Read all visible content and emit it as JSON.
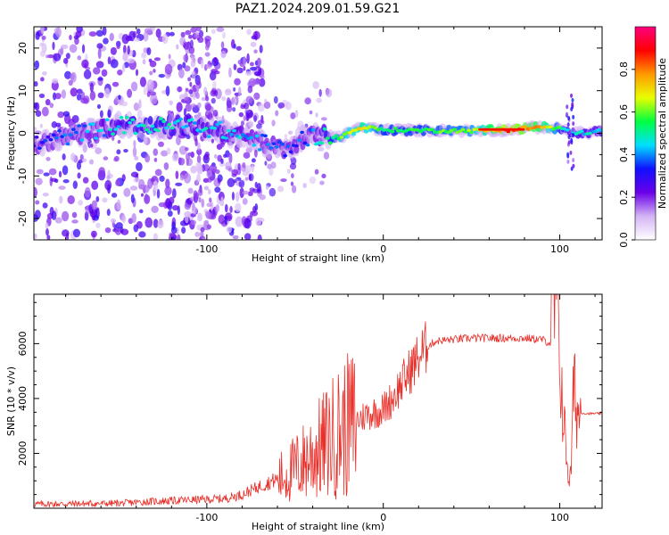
{
  "title": "PAZ1.2024.209.01.59.G21",
  "chart_data": [
    {
      "type": "heatmap",
      "xlabel": "Height of straight line (km)",
      "ylabel": "Frequency (Hz)",
      "xlim": [
        -198,
        124
      ],
      "ylim": [
        -25,
        25
      ],
      "xticks": [
        -100,
        0,
        100
      ],
      "yticks": [
        -20,
        -10,
        0,
        10,
        20
      ],
      "colorbar": {
        "label": "Normalized spectral amplitude",
        "range": [
          0,
          1
        ],
        "ticks": [
          0.0,
          0.2,
          0.4,
          0.6,
          0.8
        ],
        "colormap": [
          "#ffffff",
          "#d4b4f5",
          "#6a00e8",
          "#1010ff",
          "#00e0ff",
          "#00ff40",
          "#e8ff00",
          "#ff9900",
          "#ff0000",
          "#ff0080"
        ]
      },
      "ridge": [
        {
          "x": -198,
          "f": -2.5,
          "a": 0.3
        },
        {
          "x": -150,
          "f": 2.0,
          "a": 0.45
        },
        {
          "x": -130,
          "f": 1.5,
          "a": 0.5
        },
        {
          "x": -110,
          "f": 2.0,
          "a": 0.45
        },
        {
          "x": -90,
          "f": 0.5,
          "a": 0.45
        },
        {
          "x": -70,
          "f": -2.0,
          "a": 0.4
        },
        {
          "x": -55,
          "f": -4.0,
          "a": 0.35
        },
        {
          "x": -45,
          "f": -1.0,
          "a": 0.35
        },
        {
          "x": -35,
          "f": -0.5,
          "a": 0.45
        },
        {
          "x": -25,
          "f": -1.0,
          "a": 0.6
        },
        {
          "x": -12,
          "f": 1.5,
          "a": 0.7
        },
        {
          "x": 0,
          "f": 0.8,
          "a": 0.55
        },
        {
          "x": 20,
          "f": 0.7,
          "a": 0.55
        },
        {
          "x": 50,
          "f": 0.6,
          "a": 0.6
        },
        {
          "x": 70,
          "f": 0.8,
          "a": 0.85
        },
        {
          "x": 90,
          "f": 1.5,
          "a": 0.75
        },
        {
          "x": 102,
          "f": 1.0,
          "a": 0.5
        },
        {
          "x": 110,
          "f": 0.0,
          "a": 0.45
        },
        {
          "x": 124,
          "f": 0.5,
          "a": 0.45
        }
      ]
    },
    {
      "type": "line",
      "xlabel": "Height of straight line (km)",
      "ylabel": "SNR (10 * v/v)",
      "xlim": [
        -198,
        124
      ],
      "ylim": [
        0,
        7800
      ],
      "xticks": [
        -100,
        0,
        100
      ],
      "yticks": [
        2000,
        4000,
        6000
      ],
      "color": "#e8302a",
      "x": [
        -198,
        -150,
        -130,
        -110,
        -90,
        -80,
        -70,
        -55,
        -45,
        -40,
        -35,
        -30,
        -25,
        -20,
        -15,
        -10,
        -5,
        0,
        5,
        10,
        15,
        20,
        25,
        30,
        40,
        50,
        60,
        70,
        80,
        90,
        95,
        98,
        100,
        103,
        106,
        108,
        110,
        115,
        124
      ],
      "y": [
        150,
        180,
        250,
        300,
        350,
        500,
        800,
        1200,
        1700,
        2000,
        2200,
        2500,
        2800,
        3000,
        3200,
        3400,
        3500,
        3600,
        4000,
        4500,
        5000,
        5500,
        5900,
        6100,
        6150,
        6200,
        6200,
        6200,
        6200,
        6150,
        6000,
        7800,
        5500,
        2500,
        800,
        4500,
        3500,
        3450,
        3450
      ]
    }
  ]
}
